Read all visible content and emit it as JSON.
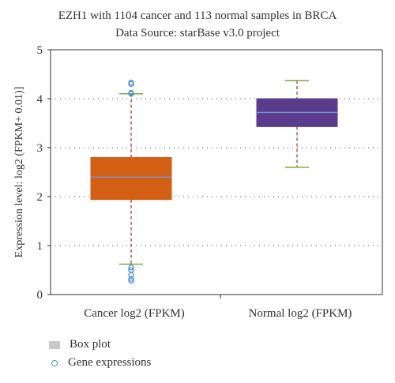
{
  "chart_data": {
    "type": "box",
    "title": "EZH1 with 1104 cancer and 113 normal samples in BRCA",
    "subtitle": "Data Source: starBase v3.0 project",
    "ylabel": "Expression level: log2 (FPKM+ 0.01)]",
    "xlabel": "",
    "ylim": [
      0,
      5
    ],
    "yticks": [
      "0",
      "1",
      "2",
      "3",
      "4",
      "5"
    ],
    "grid": "horizontal dotted",
    "categories": [
      "Cancer log2 (FPKM)",
      "Normal log2 (FPKM)"
    ],
    "boxes": [
      {
        "category": "Cancer log2 (FPKM)",
        "whisker_low": 0.62,
        "q1": 1.94,
        "median": 2.4,
        "q3": 2.8,
        "whisker_high": 4.1,
        "outliers": [
          4.33,
          4.3,
          4.12,
          4.1,
          0.55,
          0.5,
          0.4,
          0.32,
          0.28
        ],
        "color": "#d35f14"
      },
      {
        "category": "Normal log2 (FPKM)",
        "whisker_low": 2.6,
        "q1": 3.43,
        "median": 3.72,
        "q3": 4.0,
        "whisker_high": 4.37,
        "outliers": [],
        "color": "#5a3b8c"
      }
    ],
    "median_color": "#7a8fd0",
    "whisker_color": "#a0302c",
    "cap_color": "#7aa93c",
    "outlier_color": "#4a90d9",
    "legend": [
      {
        "label": "Box plot"
      },
      {
        "label": "Gene expressions"
      }
    ],
    "legend_position": "bottom-left"
  }
}
